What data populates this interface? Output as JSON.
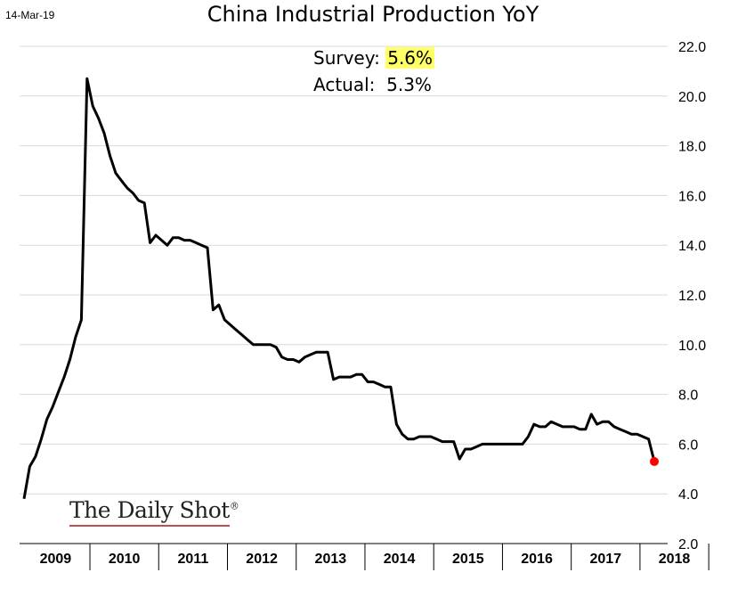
{
  "date_label": "14-Mar-19",
  "chart_data": {
    "type": "line",
    "title": "China Industrial Production YoY",
    "xlabel": "",
    "ylabel": "",
    "ylim": [
      2.0,
      22.0
    ],
    "yticks": [
      "2.0",
      "4.0",
      "6.0",
      "8.0",
      "10.0",
      "12.0",
      "14.0",
      "16.0",
      "18.0",
      "20.0",
      "22.0"
    ],
    "x_categories": [
      "2009",
      "2010",
      "2011",
      "2012",
      "2013",
      "2014",
      "2015",
      "2016",
      "2017",
      "2018"
    ],
    "grid": true,
    "line_color": "#000000",
    "marker_color": "#ff0000",
    "series": [
      {
        "frequency": "monthly",
        "start": "2009-01",
        "values": [
          3.8,
          5.1,
          5.5,
          6.2,
          7.0,
          7.5,
          8.1,
          8.7,
          9.4,
          10.3,
          11.0,
          20.7,
          19.6,
          19.1,
          18.5,
          17.6,
          16.9,
          16.6,
          16.3,
          16.1,
          15.8,
          15.7,
          14.1,
          14.4,
          14.2,
          14.0,
          14.3,
          14.3,
          14.2,
          14.2,
          14.1,
          14.0,
          13.9,
          11.4,
          11.6,
          11.0,
          10.8,
          10.6,
          10.4,
          10.2,
          10.0,
          10.0,
          10.0,
          10.0,
          9.9,
          9.5,
          9.4,
          9.4,
          9.3,
          9.5,
          9.6,
          9.7,
          9.7,
          9.7,
          8.6,
          8.7,
          8.7,
          8.7,
          8.8,
          8.8,
          8.5,
          8.5,
          8.4,
          8.3,
          8.3,
          6.8,
          6.4,
          6.2,
          6.2,
          6.3,
          6.3,
          6.3,
          6.2,
          6.1,
          6.1,
          6.1,
          5.4,
          5.8,
          5.8,
          5.9,
          6.0,
          6.0,
          6.0,
          6.0,
          6.0,
          6.0,
          6.0,
          6.0,
          6.3,
          6.8,
          6.7,
          6.7,
          6.9,
          6.8,
          6.7,
          6.7,
          6.7,
          6.6,
          6.6,
          7.2,
          6.8,
          6.9,
          6.9,
          6.7,
          6.6,
          6.5,
          6.4,
          6.4,
          6.3,
          6.2,
          5.3
        ]
      }
    ],
    "last_point": 5.3
  },
  "info": {
    "survey_label": "Survey:",
    "survey_value": "5.6%",
    "actual_label": "Actual:",
    "actual_value": "5.3%"
  },
  "watermark": {
    "text": "The Daily Shot",
    "reg": "®"
  }
}
